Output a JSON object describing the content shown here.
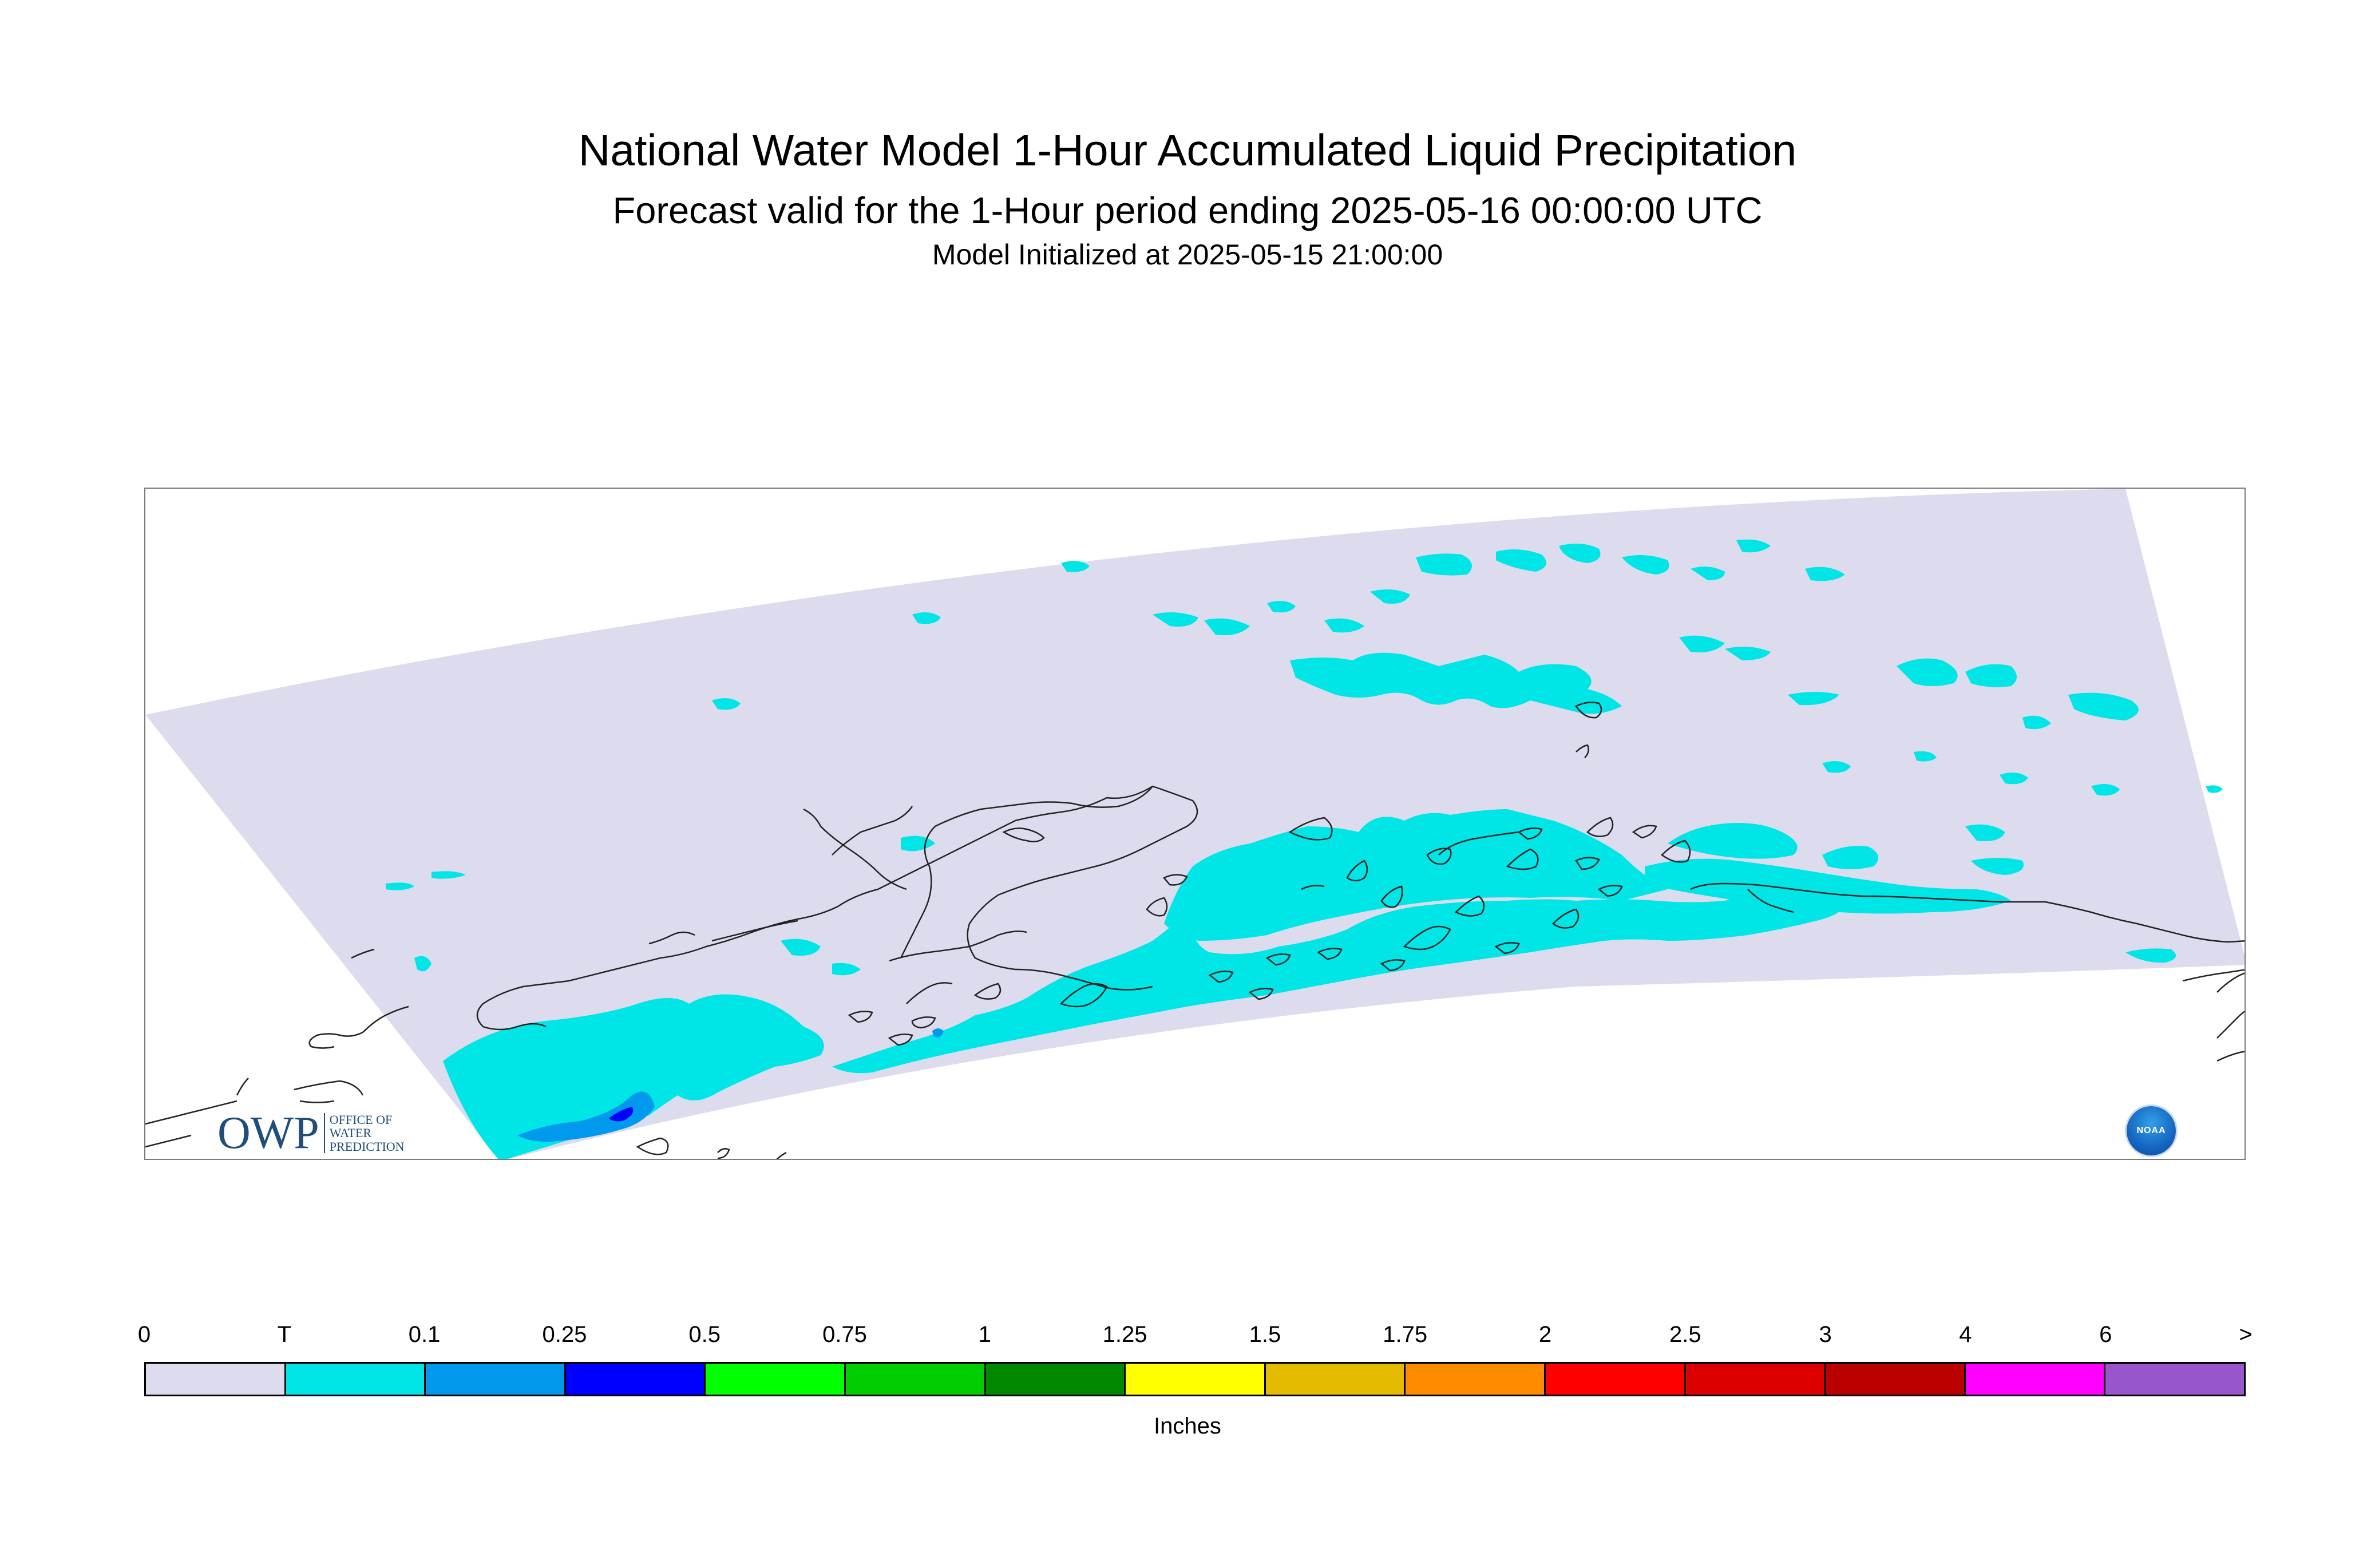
{
  "header": {
    "title": "National Water Model 1-Hour Accumulated Liquid Precipitation",
    "subtitle": "Forecast valid for the 1-Hour period ending 2025-05-16 00:00:00 UTC",
    "init": "Model Initialized at 2025-05-15 21:00:00"
  },
  "map": {
    "background_color": "#dcdcee",
    "trace_color": "#00e5e5",
    "light_color": "#0099ee",
    "heavy_color": "#0000ff",
    "coastline_color": "#222222"
  },
  "logos": {
    "owp_letters": "OWP",
    "owp_line1": "OFFICE OF",
    "owp_line2": "WATER",
    "owp_line3": "PREDICTION",
    "noaa_text": "NOAA"
  },
  "legend": {
    "labels": [
      "0",
      "T",
      "0.1",
      "0.25",
      "0.5",
      "0.75",
      "1",
      "1.25",
      "1.5",
      "1.75",
      "2",
      "2.5",
      "3",
      "4",
      "6",
      ">"
    ],
    "colors": [
      "#dcdcee",
      "#00e5e5",
      "#0099ee",
      "#0000ff",
      "#00ff00",
      "#00cc00",
      "#008800",
      "#ffff00",
      "#e5bb00",
      "#ff8c00",
      "#ff0000",
      "#dd0000",
      "#bb0000",
      "#ff00ff",
      "#9955cc"
    ],
    "units": "Inches"
  }
}
